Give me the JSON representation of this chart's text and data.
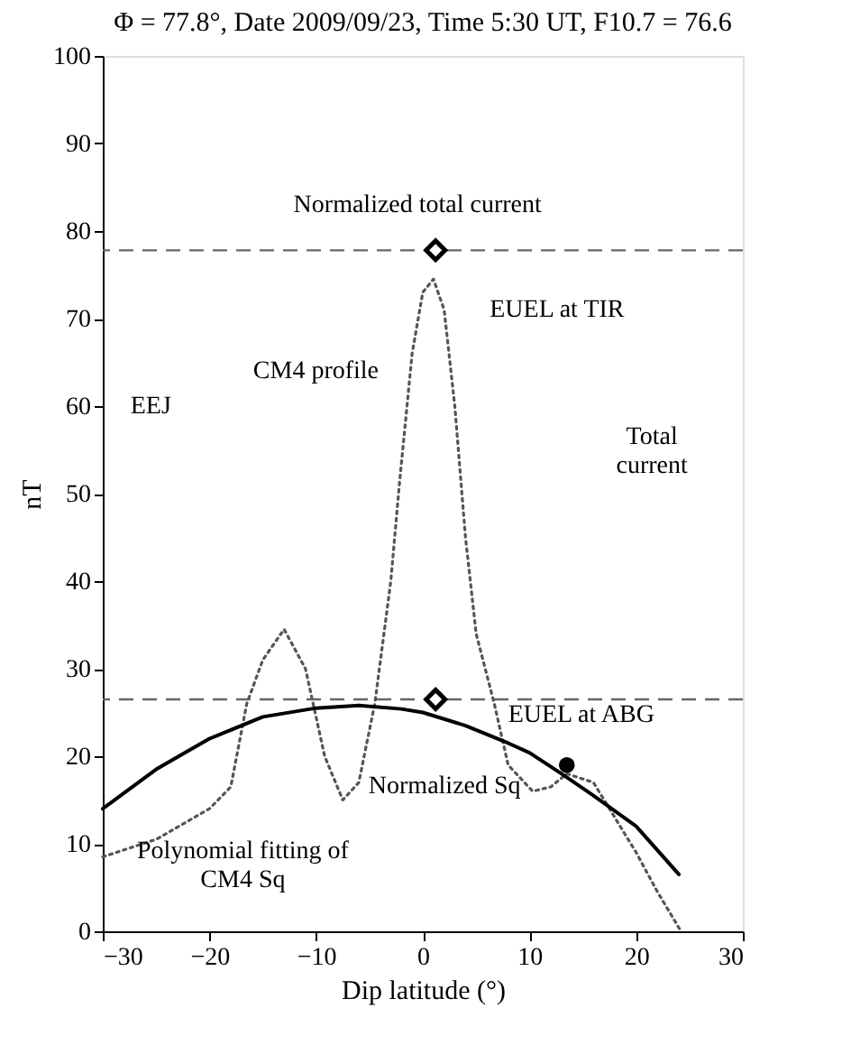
{
  "chart_data": {
    "type": "line",
    "title": "Φ = 77.8°, Date 2009/09/23, Time 5:30 UT, F10.7 = 76.6",
    "xlabel": "Dip latitude (°)",
    "ylabel": "nT",
    "xlim": [
      -30,
      30
    ],
    "xticks": [
      -30,
      -20,
      -10,
      0,
      10,
      20,
      30
    ],
    "ylim": [
      0,
      100
    ],
    "yticks": [
      0,
      10,
      20,
      30,
      40,
      50,
      60,
      70,
      80,
      90,
      100
    ],
    "grid": false,
    "series": [
      {
        "line_style": "dotted",
        "color": "#555555",
        "x": [
          -30,
          -25,
          -20,
          -18,
          -16.5,
          -15,
          -13,
          -11,
          -9.2,
          -7.5,
          -6,
          -4.5,
          -3,
          -2.2,
          -1,
          0,
          1,
          2,
          3,
          4,
          5,
          6.7,
          8,
          10.3,
          12,
          13.5,
          16,
          18,
          20,
          22,
          24.2
        ],
        "values": [
          8.5,
          10.5,
          14,
          16.5,
          26,
          31,
          34.5,
          30,
          20,
          15,
          17,
          26,
          40,
          51,
          66,
          73,
          74.5,
          71,
          60,
          45,
          34,
          26,
          19,
          16,
          16.5,
          18,
          17,
          13,
          9,
          4.5,
          0
        ]
      },
      {
        "line_style": "solid",
        "color": "#000000",
        "x": [
          -30,
          -25,
          -20,
          -15,
          -10,
          -6,
          -2,
          0,
          4,
          8,
          10,
          13,
          16,
          20,
          24
        ],
        "values": [
          14,
          18.5,
          22,
          24.5,
          25.5,
          25.8,
          25.4,
          25,
          23.5,
          21.5,
          20.4,
          18,
          15.5,
          12,
          6.5
        ]
      },
      {
        "type": "scatter",
        "marker": "diamond",
        "color": "#000000",
        "x": [
          1.2,
          1.2
        ],
        "values": [
          77.8,
          26.5
        ]
      },
      {
        "type": "scatter",
        "marker": "circle",
        "color": "#000000",
        "x": [
          13.5
        ],
        "values": [
          19
        ]
      }
    ],
    "ref_lines": [
      {
        "axis": "y",
        "value": 77.8,
        "line_style": "dashed",
        "color": "#666666"
      },
      {
        "axis": "y",
        "value": 26.5,
        "line_style": "dashed",
        "color": "#666666"
      }
    ],
    "annotations": [
      {
        "text": "Normalized total current",
        "x": 1.2,
        "y": 77.8
      },
      {
        "text": "EUEL at TIR",
        "x": 1.2,
        "y": 77.8
      },
      "CM4 profile",
      "EEJ",
      "Total current",
      {
        "text": "Normalized Sq",
        "x": 1.2,
        "y": 26.5
      },
      {
        "text": "EUEL at ABG",
        "x": 13.5,
        "y": 19
      },
      {
        "text": "Polynomial fitting of CM4 Sq",
        "x": -26.5,
        "y": 17
      }
    ]
  }
}
